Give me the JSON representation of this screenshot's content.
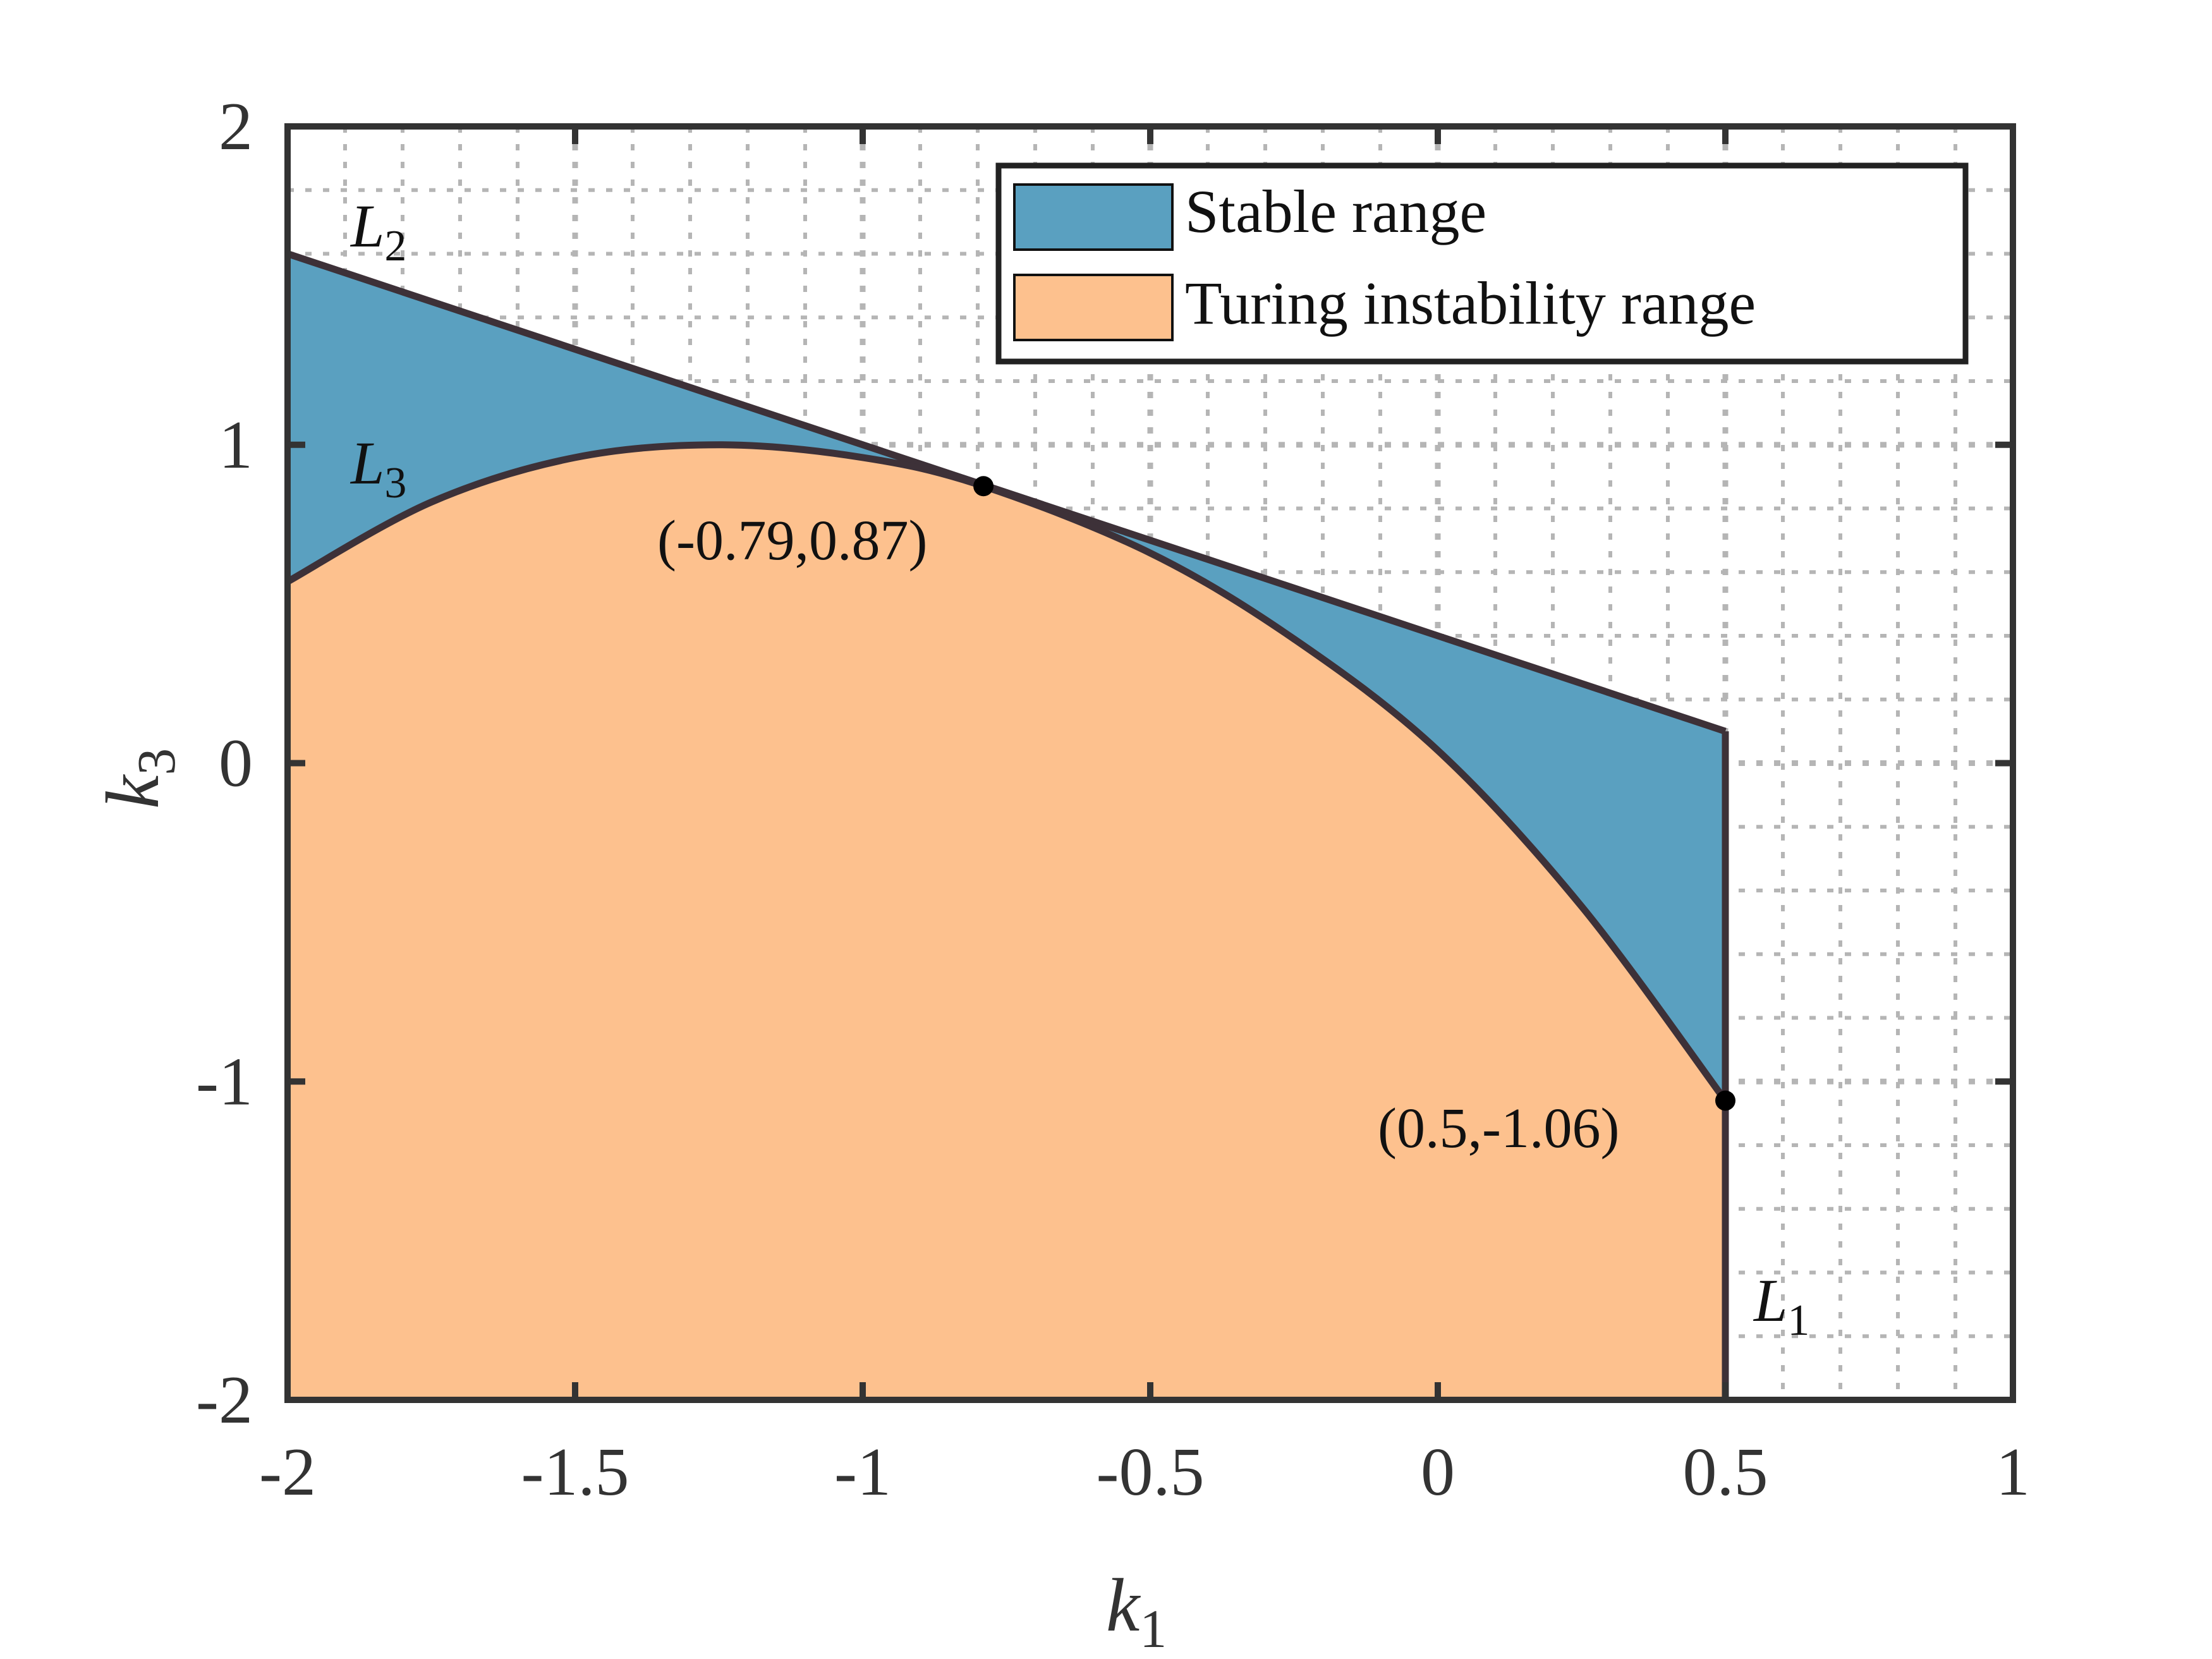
{
  "chart_data": {
    "type": "area",
    "xlabel": {
      "base": "k",
      "sub": "1"
    },
    "ylabel": {
      "base": "k",
      "sub": "3"
    },
    "xlim": [
      -2,
      1
    ],
    "ylim": [
      -2,
      2
    ],
    "x_ticks": [
      -2,
      -1.5,
      -1,
      -0.5,
      0,
      0.5,
      1
    ],
    "x_tick_labels": [
      "-2",
      "-1.5",
      "-1",
      "-0.5",
      "0",
      "0.5",
      "1"
    ],
    "y_ticks": [
      -2,
      -1,
      0,
      1,
      2
    ],
    "y_tick_labels": [
      "-2",
      "-1",
      "0",
      "1",
      "2"
    ],
    "grid": true,
    "minor_grid": true,
    "legend_position": "top-right",
    "series": [
      {
        "name": "Stable range",
        "color": "#5aa0c0",
        "role": "between L2 and L3"
      },
      {
        "name": "Turing instability range",
        "color": "#fdc18e",
        "role": "below L3"
      }
    ],
    "curves": {
      "L2": {
        "base": "L",
        "sub": "2",
        "x": [
          -2,
          0.5
        ],
        "y": [
          1.6,
          0.1
        ]
      },
      "L3": {
        "base": "L",
        "sub": "3",
        "x": [
          -2,
          -1.75,
          -1.5,
          -1.25,
          -1.0,
          -0.79,
          -0.5,
          -0.25,
          0,
          0.25,
          0.5
        ],
        "y": [
          0.57,
          0.82,
          0.96,
          1.0,
          0.96,
          0.87,
          0.66,
          0.39,
          0.04,
          -0.45,
          -1.06
        ]
      },
      "L1": {
        "base": "L",
        "sub": "1",
        "x": [
          0.5,
          0.5
        ],
        "y": [
          -2,
          0.1
        ]
      }
    },
    "points": [
      {
        "x": -0.79,
        "y": 0.87,
        "label": "(-0.79,0.87)"
      },
      {
        "x": 0.5,
        "y": -1.06,
        "label": "(0.5,-1.06)"
      }
    ],
    "colors": {
      "stable": "#5aa0c0",
      "turing": "#fdc18e",
      "boundary": "#3d3138",
      "frame": "#333333",
      "grid": "#b5b5b5"
    }
  }
}
